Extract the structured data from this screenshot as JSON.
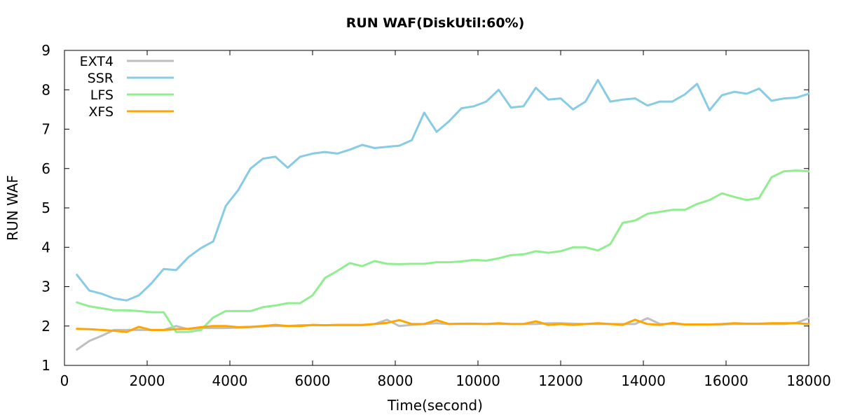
{
  "chart_data": {
    "type": "line",
    "title": "RUN WAF(DiskUtil:60%)",
    "xlabel": "Time(second)",
    "ylabel": "RUN WAF",
    "xlim": [
      0,
      18000
    ],
    "ylim": [
      1,
      9
    ],
    "xticks": [
      0,
      2000,
      4000,
      6000,
      8000,
      10000,
      12000,
      14000,
      16000,
      18000
    ],
    "yticks": [
      1,
      2,
      3,
      4,
      5,
      6,
      7,
      8,
      9
    ],
    "grid": false,
    "legend_position": "top-left",
    "series": [
      {
        "name": "EXT4",
        "color": "#bfbfbf",
        "x": [
          300,
          600,
          900,
          1200,
          1500,
          1800,
          2100,
          2400,
          2700,
          3000,
          3300,
          3600,
          3900,
          4200,
          4500,
          4800,
          5100,
          5400,
          5700,
          6000,
          6300,
          6600,
          6900,
          7200,
          7500,
          7800,
          8100,
          8400,
          8700,
          9000,
          9300,
          9600,
          9900,
          10200,
          10500,
          10800,
          11100,
          11400,
          11700,
          12000,
          12300,
          12600,
          12900,
          13200,
          13500,
          13800,
          14100,
          14400,
          14700,
          15000,
          15300,
          15600,
          15900,
          16200,
          16500,
          16800,
          17100,
          17400,
          17700,
          18000
        ],
        "y": [
          1.4,
          1.62,
          1.75,
          1.9,
          1.9,
          1.9,
          1.9,
          1.9,
          2.0,
          1.92,
          1.95,
          1.95,
          1.95,
          1.96,
          1.97,
          1.99,
          2.0,
          2.0,
          2.02,
          2.02,
          2.02,
          2.02,
          2.02,
          2.02,
          2.05,
          2.16,
          2.0,
          2.03,
          2.05,
          2.07,
          2.05,
          2.05,
          2.05,
          2.05,
          2.05,
          2.05,
          2.05,
          2.05,
          2.07,
          2.07,
          2.06,
          2.05,
          2.05,
          2.05,
          2.05,
          2.05,
          2.2,
          2.05,
          2.05,
          2.04,
          2.04,
          2.04,
          2.04,
          2.05,
          2.05,
          2.05,
          2.05,
          2.05,
          2.08,
          2.2
        ]
      },
      {
        "name": "SSR",
        "color": "#87cbe4",
        "x": [
          300,
          600,
          900,
          1200,
          1500,
          1800,
          2100,
          2400,
          2700,
          3000,
          3300,
          3600,
          3900,
          4200,
          4500,
          4800,
          5100,
          5400,
          5700,
          6000,
          6300,
          6600,
          6900,
          7200,
          7500,
          7800,
          8100,
          8400,
          8700,
          9000,
          9300,
          9600,
          9900,
          10200,
          10500,
          10800,
          11100,
          11400,
          11700,
          12000,
          12300,
          12600,
          12900,
          13200,
          13500,
          13800,
          14100,
          14400,
          14700,
          15000,
          15300,
          15600,
          15900,
          16200,
          16500,
          16800,
          17100,
          17400,
          17700,
          18000
        ],
        "y": [
          3.3,
          2.9,
          2.82,
          2.7,
          2.65,
          2.78,
          3.08,
          3.45,
          3.42,
          3.75,
          3.98,
          4.15,
          5.05,
          5.45,
          6.0,
          6.25,
          6.3,
          6.02,
          6.3,
          6.38,
          6.42,
          6.38,
          6.48,
          6.6,
          6.52,
          6.55,
          6.58,
          6.72,
          7.42,
          6.93,
          7.2,
          7.53,
          7.58,
          7.7,
          8.0,
          7.55,
          7.58,
          8.05,
          7.75,
          7.78,
          7.5,
          7.7,
          8.25,
          7.7,
          7.75,
          7.78,
          7.6,
          7.7,
          7.7,
          7.88,
          8.15,
          7.48,
          7.86,
          7.95,
          7.9,
          8.03,
          7.72,
          7.78,
          7.8,
          7.9
        ]
      },
      {
        "name": "LFS",
        "color": "#90ee90",
        "x": [
          300,
          600,
          900,
          1200,
          1500,
          1800,
          2100,
          2400,
          2700,
          3000,
          3300,
          3600,
          3900,
          4200,
          4500,
          4800,
          5100,
          5400,
          5700,
          6000,
          6300,
          6600,
          6900,
          7200,
          7500,
          7800,
          8100,
          8400,
          8700,
          9000,
          9300,
          9600,
          9900,
          10200,
          10500,
          10800,
          11100,
          11400,
          11700,
          12000,
          12300,
          12600,
          12900,
          13200,
          13500,
          13800,
          14100,
          14400,
          14700,
          15000,
          15300,
          15600,
          15900,
          16200,
          16500,
          16800,
          17100,
          17400,
          17700,
          18000
        ],
        "y": [
          2.6,
          2.5,
          2.45,
          2.4,
          2.4,
          2.38,
          2.35,
          2.35,
          1.85,
          1.85,
          1.9,
          2.22,
          2.38,
          2.38,
          2.38,
          2.48,
          2.52,
          2.58,
          2.58,
          2.78,
          3.22,
          3.4,
          3.6,
          3.52,
          3.65,
          3.58,
          3.57,
          3.58,
          3.58,
          3.62,
          3.62,
          3.64,
          3.68,
          3.66,
          3.72,
          3.8,
          3.82,
          3.9,
          3.86,
          3.9,
          4.0,
          4.0,
          3.92,
          4.08,
          4.62,
          4.68,
          4.85,
          4.9,
          4.95,
          4.95,
          5.1,
          5.2,
          5.37,
          5.28,
          5.2,
          5.25,
          5.78,
          5.93,
          5.95,
          5.93
        ]
      },
      {
        "name": "XFS",
        "color": "#ffa500",
        "x": [
          300,
          600,
          900,
          1200,
          1500,
          1800,
          2100,
          2400,
          2700,
          3000,
          3300,
          3600,
          3900,
          4200,
          4500,
          4800,
          5100,
          5400,
          5700,
          6000,
          6300,
          6600,
          6900,
          7200,
          7500,
          7800,
          8100,
          8400,
          8700,
          9000,
          9300,
          9600,
          9900,
          10200,
          10500,
          10800,
          11100,
          11400,
          11700,
          12000,
          12300,
          12600,
          12900,
          13200,
          13500,
          13800,
          14100,
          14400,
          14700,
          15000,
          15300,
          15600,
          15900,
          16200,
          16500,
          16800,
          17100,
          17400,
          17700,
          18000
        ],
        "y": [
          1.93,
          1.92,
          1.9,
          1.88,
          1.85,
          1.98,
          1.9,
          1.9,
          1.92,
          1.93,
          1.97,
          2.0,
          2.0,
          1.97,
          1.98,
          2.0,
          2.03,
          2.0,
          2.0,
          2.03,
          2.02,
          2.03,
          2.03,
          2.03,
          2.05,
          2.08,
          2.15,
          2.05,
          2.05,
          2.15,
          2.05,
          2.06,
          2.06,
          2.05,
          2.07,
          2.05,
          2.05,
          2.12,
          2.03,
          2.05,
          2.03,
          2.05,
          2.07,
          2.05,
          2.03,
          2.16,
          2.05,
          2.03,
          2.08,
          2.04,
          2.04,
          2.04,
          2.05,
          2.07,
          2.06,
          2.06,
          2.07,
          2.07,
          2.07,
          2.05
        ]
      }
    ]
  }
}
